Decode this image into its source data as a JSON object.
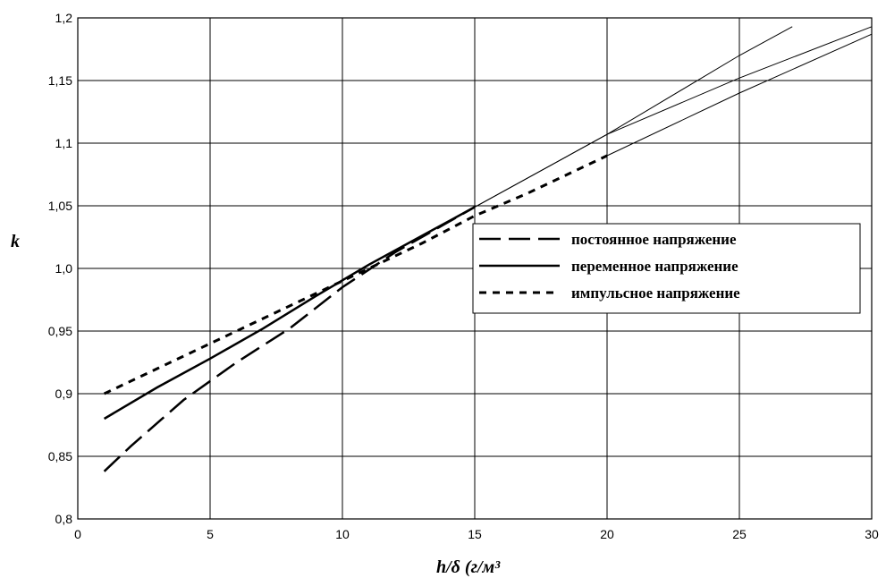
{
  "chart_data": {
    "type": "line",
    "title": "",
    "xlabel": "h/δ (г/м³",
    "ylabel": "k",
    "xlim": [
      0,
      30
    ],
    "ylim": [
      0.8,
      1.2
    ],
    "xticks": [
      0,
      5,
      10,
      15,
      20,
      25,
      30
    ],
    "xtick_labels": [
      "0",
      "5",
      "10",
      "15",
      "20",
      "25",
      "30"
    ],
    "yticks": [
      0.8,
      0.85,
      0.9,
      0.95,
      1.0,
      1.05,
      1.1,
      1.15,
      1.2
    ],
    "ytick_labels": [
      "0,8",
      "0,85",
      "0,9",
      "0,95",
      "1,0",
      "1,05",
      "1,1",
      "1,15",
      "1,2"
    ],
    "grid": true,
    "legend_position": "right",
    "series": [
      {
        "name": "постоянное напряжение",
        "style": "long-dash",
        "x": [
          1,
          2,
          4,
          6,
          8,
          10,
          12,
          14,
          15
        ],
        "y": [
          0.838,
          0.858,
          0.895,
          0.925,
          0.952,
          0.985,
          1.013,
          1.037,
          1.049
        ]
      },
      {
        "name": "переменное напряжение",
        "style": "solid",
        "x": [
          1,
          3,
          5,
          7,
          9,
          11,
          13,
          15
        ],
        "y": [
          0.88,
          0.905,
          0.928,
          0.952,
          0.978,
          1.003,
          1.026,
          1.049
        ]
      },
      {
        "name": "импульсное напряжение",
        "style": "short-dash",
        "x": [
          1,
          3,
          5,
          7,
          9,
          11,
          13,
          15,
          17,
          20
        ],
        "y": [
          0.9,
          0.92,
          0.94,
          0.96,
          0.98,
          1.0,
          1.02,
          1.042,
          1.06,
          1.09
        ]
      }
    ],
    "extrapolation_lines": [
      {
        "style": "thin",
        "x": [
          15,
          20,
          25,
          27
        ],
        "y": [
          1.049,
          1.107,
          1.17,
          1.193
        ]
      },
      {
        "style": "thin",
        "x": [
          15,
          20,
          25,
          30
        ],
        "y": [
          1.049,
          1.107,
          1.152,
          1.193
        ]
      },
      {
        "style": "thin",
        "x": [
          20,
          25,
          30
        ],
        "y": [
          1.09,
          1.14,
          1.187
        ]
      }
    ]
  }
}
